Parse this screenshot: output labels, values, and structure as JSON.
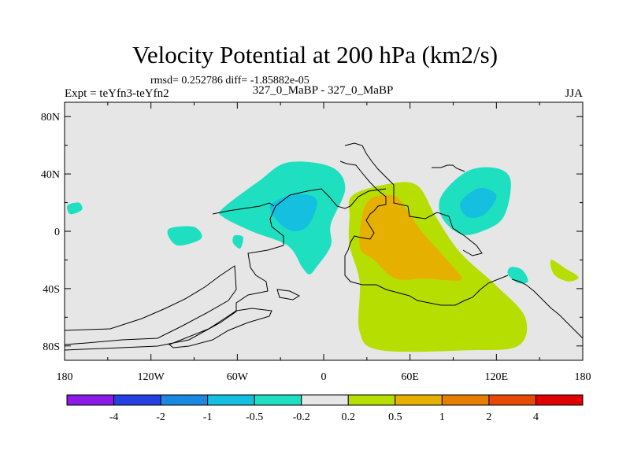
{
  "chart_data": {
    "type": "heatmap",
    "title": "Velocity Potential at 200 hPa (km2/s)",
    "stats": "rmsd= 0.252786 diff= -1.85882e-05",
    "left_label": "Expt = teYfn3-teYfn2",
    "center_label": "327_0_MaBP - 327_0_MaBP",
    "right_label": "JJA",
    "xlim": [
      -180,
      180
    ],
    "ylim": [
      -90,
      90
    ],
    "x_ticks": [
      {
        "value": -180,
        "label": "180"
      },
      {
        "value": -120,
        "label": "120W"
      },
      {
        "value": -60,
        "label": "60W"
      },
      {
        "value": 0,
        "label": "0"
      },
      {
        "value": 60,
        "label": "60E"
      },
      {
        "value": 120,
        "label": "120E"
      },
      {
        "value": 180,
        "label": "180"
      }
    ],
    "y_ticks": [
      {
        "value": 80,
        "label": "80N"
      },
      {
        "value": 40,
        "label": "40N"
      },
      {
        "value": 0,
        "label": "0"
      },
      {
        "value": -40,
        "label": "40S"
      },
      {
        "value": -80,
        "label": "80S"
      }
    ],
    "colorbar": {
      "colors": [
        "#8a1ae6",
        "#2440e0",
        "#1a88e0",
        "#14bfe0",
        "#1ee0c0",
        "#e6e6e6",
        "#b6de00",
        "#e6b000",
        "#e67e00",
        "#e64a00",
        "#e00000"
      ],
      "labels": [
        "-4",
        "-2",
        "-1",
        "-0.5",
        "-0.2",
        "0.2",
        "0.5",
        "1",
        "2",
        "4"
      ]
    },
    "anomalies": [
      {
        "sign": "positive",
        "level": "0.2 to 0.5",
        "color": "#b6de00",
        "region": "Africa / Indian Ocean",
        "points": [
          [
            20,
            25
          ],
          [
            45,
            33
          ],
          [
            65,
            32
          ],
          [
            78,
            10
          ],
          [
            95,
            -15
          ],
          [
            120,
            -38
          ],
          [
            140,
            -60
          ],
          [
            135,
            -80
          ],
          [
            100,
            -83
          ],
          [
            40,
            -83
          ],
          [
            25,
            -70
          ],
          [
            25,
            -35
          ],
          [
            18,
            -10
          ],
          [
            18,
            10
          ]
        ]
      },
      {
        "sign": "positive",
        "level": "0.5 to 1",
        "color": "#e6b000",
        "region": "East Africa / Arabian Sea",
        "points": [
          [
            30,
            20
          ],
          [
            48,
            25
          ],
          [
            58,
            15
          ],
          [
            68,
            0
          ],
          [
            90,
            -25
          ],
          [
            95,
            -34
          ],
          [
            70,
            -33
          ],
          [
            50,
            -33
          ],
          [
            35,
            -20
          ],
          [
            25,
            -10
          ]
        ]
      },
      {
        "sign": "positive",
        "level": "0.2 to 0.5",
        "color": "#b6de00",
        "region": "South Pacific",
        "points": [
          [
            158,
            -20
          ],
          [
            168,
            -26
          ],
          [
            177,
            -32
          ],
          [
            170,
            -35
          ],
          [
            160,
            -30
          ]
        ]
      },
      {
        "sign": "negative",
        "level": "-0.2 to -0.5",
        "color": "#1ee0c0",
        "region": "North Atlantic / Europe",
        "points": [
          [
            -70,
            16
          ],
          [
            -45,
            35
          ],
          [
            -25,
            48
          ],
          [
            5,
            45
          ],
          [
            15,
            30
          ],
          [
            5,
            5
          ],
          [
            5,
            -10
          ],
          [
            -5,
            -25
          ],
          [
            -10,
            -30
          ],
          [
            -15,
            -25
          ],
          [
            -25,
            -10
          ],
          [
            -50,
            0
          ],
          [
            -70,
            10
          ]
        ]
      },
      {
        "sign": "negative",
        "level": "-0.5 to -1",
        "color": "#14bfe0",
        "region": "North Atlantic / Europe",
        "points": [
          [
            -35,
            20
          ],
          [
            -20,
            26
          ],
          [
            -5,
            22
          ],
          [
            -10,
            5
          ],
          [
            -20,
            0
          ],
          [
            -30,
            5
          ],
          [
            -37,
            15
          ]
        ]
      },
      {
        "sign": "negative",
        "level": "-0.2 to -0.5",
        "color": "#1ee0c0",
        "region": "East Asia",
        "points": [
          [
            82,
            25
          ],
          [
            100,
            42
          ],
          [
            120,
            44
          ],
          [
            130,
            35
          ],
          [
            125,
            10
          ],
          [
            110,
            0
          ],
          [
            95,
            -2
          ],
          [
            82,
            10
          ]
        ]
      },
      {
        "sign": "negative",
        "level": "-0.5 to -1",
        "color": "#14bfe0",
        "region": "East Asia",
        "points": [
          [
            95,
            20
          ],
          [
            108,
            30
          ],
          [
            120,
            25
          ],
          [
            112,
            12
          ],
          [
            100,
            10
          ]
        ]
      },
      {
        "sign": "negative",
        "level": "-0.2 to -0.5",
        "color": "#1ee0c0",
        "region": "Northeast Pacific",
        "points": [
          [
            -178,
            18
          ],
          [
            -170,
            20
          ],
          [
            -168,
            15
          ],
          [
            -176,
            12
          ]
        ]
      },
      {
        "sign": "negative",
        "level": "-0.2 to -0.5",
        "color": "#1ee0c0",
        "region": "Tropical Atlantic",
        "points": [
          [
            -107,
            2
          ],
          [
            -90,
            3
          ],
          [
            -85,
            -5
          ],
          [
            -100,
            -10
          ],
          [
            -107,
            -5
          ]
        ]
      },
      {
        "sign": "negative",
        "level": "-0.2 to -0.5",
        "color": "#1ee0c0",
        "region": "Tropical Atlantic",
        "points": [
          [
            -62,
            -3
          ],
          [
            -56,
            -4
          ],
          [
            -58,
            -12
          ],
          [
            -63,
            -8
          ]
        ]
      },
      {
        "sign": "negative",
        "level": "-0.2 to -0.5",
        "color": "#1ee0c0",
        "region": "Southwest Pacific",
        "points": [
          [
            130,
            -25
          ],
          [
            138,
            -27
          ],
          [
            142,
            -35
          ],
          [
            135,
            -36
          ],
          [
            128,
            -30
          ]
        ]
      }
    ]
  }
}
